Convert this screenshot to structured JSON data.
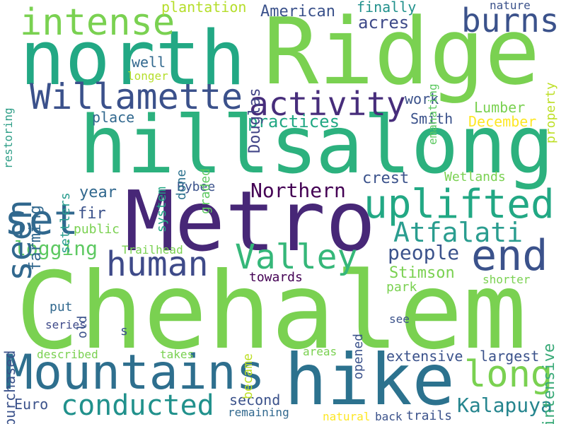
{
  "words": [
    {
      "text": "Chehalem",
      "color": "#7ad151"
    },
    {
      "text": "Ridge",
      "color": "#7ad151"
    },
    {
      "text": "north",
      "color": "#22a884"
    },
    {
      "text": "hills",
      "color": "#2cb17e"
    },
    {
      "text": "along",
      "color": "#2cb17e"
    },
    {
      "text": "Metro",
      "color": "#472777"
    },
    {
      "text": "hike",
      "color": "#2c728e"
    },
    {
      "text": "Mountains",
      "color": "#2e6f8e"
    },
    {
      "text": "intense",
      "color": "#7ad151"
    },
    {
      "text": "Willamette",
      "color": "#3b518b"
    },
    {
      "text": "uplifted",
      "color": "#22a884"
    },
    {
      "text": "burns",
      "color": "#3b528b"
    },
    {
      "text": "seen",
      "color": "#31688e"
    },
    {
      "text": "set",
      "color": "#31688e"
    },
    {
      "text": "activity",
      "color": "#472d7b"
    },
    {
      "text": "human",
      "color": "#3e4a89"
    },
    {
      "text": "Valley",
      "color": "#35b779"
    },
    {
      "text": "end",
      "color": "#3b528b"
    },
    {
      "text": "Atfalati",
      "color": "#2a9d8f"
    },
    {
      "text": "long",
      "color": "#7ad151"
    },
    {
      "text": "conducted",
      "color": "#21918c"
    },
    {
      "text": "Northern",
      "color": "#440154"
    },
    {
      "text": "Kalapuya",
      "color": "#25858e"
    },
    {
      "text": "logging",
      "color": "#5ec962"
    },
    {
      "text": "farming",
      "color": "#31688e"
    },
    {
      "text": "people",
      "color": "#3b528b"
    },
    {
      "text": "intensive",
      "color": "#38a977"
    },
    {
      "text": "practices",
      "color": "#22a884"
    },
    {
      "text": "American",
      "color": "#3b528b"
    },
    {
      "text": "Douglas",
      "color": "#414487"
    },
    {
      "text": "plantation",
      "color": "#b5de2b"
    },
    {
      "text": "finally",
      "color": "#21918c"
    },
    {
      "text": "acres",
      "color": "#3e4a89"
    },
    {
      "text": "nature",
      "color": "#3b528b"
    },
    {
      "text": "property",
      "color": "#bddf26"
    },
    {
      "text": "emanating",
      "color": "#5ec962"
    },
    {
      "text": "restoring",
      "color": "#2e9e87"
    },
    {
      "text": "longer",
      "color": "#b5de2b"
    },
    {
      "text": "well",
      "color": "#31688e"
    },
    {
      "text": "place",
      "color": "#31688e"
    },
    {
      "text": "work",
      "color": "#3b528b"
    },
    {
      "text": "Lumber",
      "color": "#7ad151"
    },
    {
      "text": "Smith",
      "color": "#3b528b"
    },
    {
      "text": "December",
      "color": "#fde725"
    },
    {
      "text": "settlers",
      "color": "#2a9d8f"
    },
    {
      "text": "system",
      "color": "#22a884"
    },
    {
      "text": "done",
      "color": "#2c728e"
    },
    {
      "text": "graded",
      "color": "#5ec962"
    },
    {
      "text": "crest",
      "color": "#3b528b"
    },
    {
      "text": "Wetlands",
      "color": "#7ad151"
    },
    {
      "text": "year",
      "color": "#31688e"
    },
    {
      "text": "Bybee",
      "color": "#3b528b"
    },
    {
      "text": "fir",
      "color": "#3b528b"
    },
    {
      "text": "public",
      "color": "#7ad151"
    },
    {
      "text": "Trailhead",
      "color": "#7ad151"
    },
    {
      "text": "Stimson",
      "color": "#7ad151"
    },
    {
      "text": "park",
      "color": "#7ad151"
    },
    {
      "text": "shorter",
      "color": "#7ad151"
    },
    {
      "text": "towards",
      "color": "#440154"
    },
    {
      "text": "opened",
      "color": "#3b528b"
    },
    {
      "text": "purchased",
      "color": "#3b528b"
    },
    {
      "text": "old",
      "color": "#3b528b"
    },
    {
      "text": "put",
      "color": "#31688e"
    },
    {
      "text": "series",
      "color": "#3e4a89"
    },
    {
      "text": "s",
      "color": "#3b528b"
    },
    {
      "text": "became",
      "color": "#bddf26"
    },
    {
      "text": "see",
      "color": "#3b528b"
    },
    {
      "text": "described",
      "color": "#7ad151"
    },
    {
      "text": "takes",
      "color": "#7ad151"
    },
    {
      "text": "areas",
      "color": "#7ad151"
    },
    {
      "text": "extensive",
      "color": "#3b528b"
    },
    {
      "text": "largest",
      "color": "#3b528b"
    },
    {
      "text": "second",
      "color": "#3b528b"
    },
    {
      "text": "remaining",
      "color": "#31688e"
    },
    {
      "text": "Euro",
      "color": "#3b528b"
    },
    {
      "text": "natural",
      "color": "#fde725"
    },
    {
      "text": "back",
      "color": "#3b528b"
    },
    {
      "text": "trails",
      "color": "#3b528b"
    }
  ]
}
